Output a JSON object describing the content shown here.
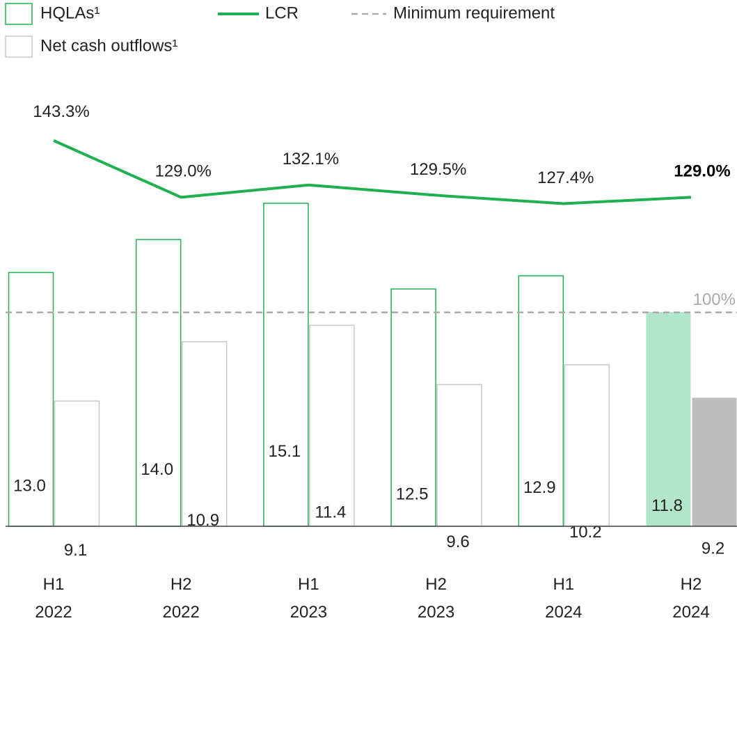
{
  "chart_data": {
    "type": "bar",
    "categories": [
      "H1\n2022",
      "H2\n2022",
      "H1\n2023",
      "H2\n2023",
      "H1\n2024",
      "H2\n2024"
    ],
    "series": [
      {
        "name": "HQLAs¹",
        "type": "bar",
        "color": "#1fb04f",
        "highlight_color": "#b1e5cc",
        "values": [
          13.0,
          14.0,
          15.1,
          12.5,
          12.9,
          11.8
        ],
        "value_labels": [
          "13.0",
          "14.0",
          "15.1",
          "12.5",
          "12.9",
          "11.8"
        ]
      },
      {
        "name": "Net cash outflows¹",
        "type": "bar",
        "color": "#c8c8c8",
        "highlight_color": "#bdbdbd",
        "values": [
          9.1,
          10.9,
          11.4,
          9.6,
          10.2,
          9.2
        ],
        "value_labels": [
          "9.1",
          "10.9",
          "11.4",
          "9.6",
          "10.2",
          "9.2"
        ]
      },
      {
        "name": "LCR",
        "type": "line",
        "axis": "y2",
        "color": "#1fb04f",
        "values": [
          143.3,
          129.0,
          132.1,
          129.5,
          127.4,
          129.0
        ],
        "value_labels": [
          "143.3%",
          "129.0%",
          "132.1%",
          "129.5%",
          "127.4%",
          "129.0%"
        ]
      }
    ],
    "reference_line": {
      "name": "Minimum requirement",
      "value": 100,
      "label": "100%",
      "axis": "y2",
      "color": "#aaaaaa"
    },
    "highlight_index": 5,
    "ylim": [
      5.3,
      18.1
    ],
    "y2lim": [
      46.1,
      152.4
    ]
  }
}
